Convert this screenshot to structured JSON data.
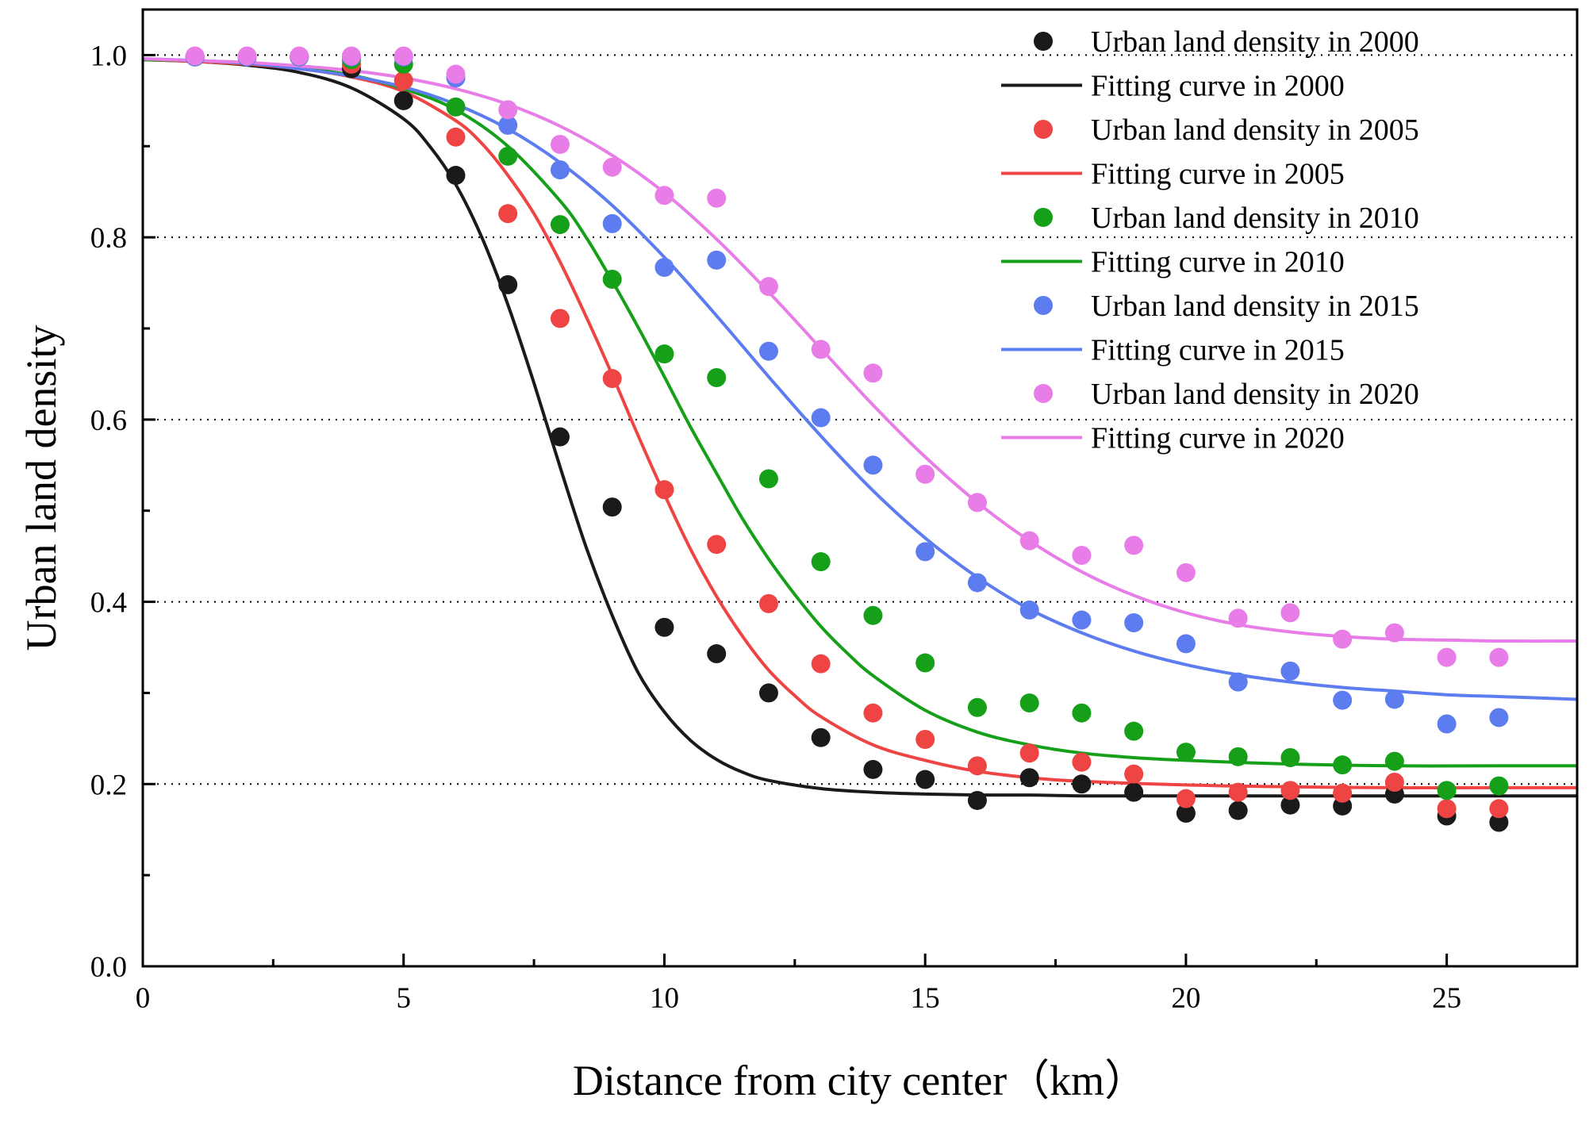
{
  "chart_data": {
    "type": "scatter",
    "xlabel": "Distance from city center（km）",
    "ylabel": "Urban land density",
    "xlim": [
      0,
      27.5
    ],
    "ylim": [
      0,
      1.05
    ],
    "x_ticks": [
      0,
      5,
      10,
      15,
      20,
      25
    ],
    "x_tick_labels": [
      "0",
      "5",
      "10",
      "15",
      "20",
      "25"
    ],
    "y_ticks": [
      0.0,
      0.2,
      0.4,
      0.6,
      0.8,
      1.0
    ],
    "y_tick_labels": [
      "0.0",
      "0.2",
      "0.4",
      "0.6",
      "0.8",
      "1.0"
    ],
    "grid": "dotted horizontal lines at 0.2, 0.4, 0.6, 0.8, 1.0",
    "legend_position": "top-right",
    "series": [
      {
        "name": "Urban land density in 2000",
        "kind": "points",
        "color": "#1a1a1a",
        "x": [
          1,
          2,
          3,
          4,
          5,
          6,
          7,
          8,
          9,
          10,
          11,
          12,
          13,
          14,
          15,
          16,
          17,
          18,
          19,
          20,
          21,
          22,
          23,
          24,
          25,
          26
        ],
        "y": [
          0.998,
          0.998,
          0.998,
          0.985,
          0.95,
          0.868,
          0.748,
          0.581,
          0.504,
          0.372,
          0.343,
          0.3,
          0.251,
          0.216,
          0.205,
          0.182,
          0.207,
          0.2,
          0.191,
          0.168,
          0.171,
          0.177,
          0.176,
          0.189,
          0.165,
          0.158
        ]
      },
      {
        "name": "Fitting curve in 2000",
        "kind": "curve",
        "color": "#1a1a1a",
        "x": [
          0,
          1,
          2,
          3,
          4,
          5,
          5.5,
          6,
          6.5,
          7,
          7.5,
          8,
          8.5,
          9,
          9.5,
          10,
          10.5,
          11,
          11.5,
          12,
          13,
          14,
          15,
          16,
          17,
          18,
          20,
          22,
          24,
          26,
          27.5
        ],
        "y": [
          0.995,
          0.993,
          0.989,
          0.981,
          0.964,
          0.93,
          0.9,
          0.858,
          0.8,
          0.726,
          0.64,
          0.548,
          0.46,
          0.385,
          0.322,
          0.279,
          0.248,
          0.227,
          0.213,
          0.204,
          0.195,
          0.191,
          0.189,
          0.188,
          0.188,
          0.187,
          0.187,
          0.187,
          0.187,
          0.187,
          0.187
        ]
      },
      {
        "name": "Urban land density in 2005",
        "kind": "points",
        "color": "#ef4444",
        "x": [
          1,
          2,
          3,
          4,
          5,
          6,
          7,
          8,
          9,
          10,
          11,
          12,
          13,
          14,
          15,
          16,
          17,
          18,
          19,
          20,
          21,
          22,
          23,
          24,
          25,
          26
        ],
        "y": [
          0.998,
          0.998,
          0.998,
          0.99,
          0.972,
          0.91,
          0.826,
          0.711,
          0.645,
          0.523,
          0.463,
          0.398,
          0.332,
          0.278,
          0.249,
          0.22,
          0.234,
          0.224,
          0.211,
          0.184,
          0.191,
          0.193,
          0.19,
          0.202,
          0.173,
          0.173
        ]
      },
      {
        "name": "Fitting curve in 2005",
        "kind": "curve",
        "color": "#ef4444",
        "x": [
          0,
          1,
          2,
          3,
          4,
          5,
          6,
          6.5,
          7,
          7.5,
          8,
          8.5,
          9,
          9.5,
          10,
          10.5,
          11,
          11.5,
          12,
          12.5,
          13,
          14,
          15,
          16,
          17,
          18,
          20,
          22,
          24,
          26,
          27.5
        ],
        "y": [
          0.995,
          0.993,
          0.99,
          0.985,
          0.976,
          0.96,
          0.928,
          0.903,
          0.868,
          0.826,
          0.773,
          0.713,
          0.649,
          0.582,
          0.518,
          0.458,
          0.406,
          0.362,
          0.325,
          0.297,
          0.274,
          0.243,
          0.226,
          0.214,
          0.207,
          0.203,
          0.199,
          0.197,
          0.196,
          0.196,
          0.196
        ]
      },
      {
        "name": "Urban land density in 2010",
        "kind": "points",
        "color": "#16a01a",
        "x": [
          1,
          2,
          3,
          4,
          5,
          6,
          7,
          8,
          9,
          10,
          11,
          12,
          13,
          14,
          15,
          16,
          17,
          18,
          19,
          20,
          21,
          22,
          23,
          24,
          25,
          26
        ],
        "y": [
          0.998,
          0.998,
          0.998,
          0.995,
          0.99,
          0.943,
          0.889,
          0.814,
          0.754,
          0.672,
          0.646,
          0.535,
          0.444,
          0.385,
          0.333,
          0.284,
          0.289,
          0.278,
          0.258,
          0.235,
          0.23,
          0.229,
          0.221,
          0.225,
          0.193,
          0.198
        ]
      },
      {
        "name": "Fitting curve in 2010",
        "kind": "curve",
        "color": "#16a01a",
        "x": [
          0,
          1,
          2,
          3,
          4,
          5,
          6,
          7,
          8,
          8.5,
          9,
          9.5,
          10,
          10.5,
          11,
          11.5,
          12,
          12.5,
          13,
          13.5,
          14,
          15,
          16,
          17,
          18,
          19,
          20,
          22,
          24,
          26,
          27.5
        ],
        "y": [
          0.995,
          0.994,
          0.991,
          0.986,
          0.978,
          0.963,
          0.94,
          0.9,
          0.84,
          0.8,
          0.752,
          0.701,
          0.647,
          0.592,
          0.541,
          0.491,
          0.447,
          0.408,
          0.373,
          0.344,
          0.319,
          0.281,
          0.257,
          0.243,
          0.234,
          0.229,
          0.226,
          0.222,
          0.22,
          0.22,
          0.22
        ]
      },
      {
        "name": "Urban land density in 2015",
        "kind": "points",
        "color": "#5c7cf0",
        "x": [
          1,
          2,
          3,
          4,
          5,
          6,
          7,
          8,
          9,
          10,
          11,
          12,
          13,
          14,
          15,
          16,
          17,
          18,
          19,
          20,
          21,
          22,
          23,
          24,
          25,
          26
        ],
        "y": [
          0.998,
          0.998,
          0.998,
          0.998,
          0.998,
          0.975,
          0.923,
          0.874,
          0.815,
          0.767,
          0.775,
          0.675,
          0.602,
          0.55,
          0.455,
          0.421,
          0.391,
          0.38,
          0.377,
          0.354,
          0.312,
          0.324,
          0.292,
          0.293,
          0.266,
          0.273
        ]
      },
      {
        "name": "Fitting curve in 2015",
        "kind": "curve",
        "color": "#5c7cf0",
        "x": [
          0,
          1,
          2,
          3,
          4,
          5,
          6,
          7,
          8,
          9,
          10,
          11,
          12,
          13,
          14,
          15,
          16,
          17,
          18,
          19,
          20,
          21,
          22,
          23,
          24,
          25,
          26,
          27.5
        ],
        "y": [
          0.996,
          0.994,
          0.991,
          0.985,
          0.977,
          0.965,
          0.946,
          0.919,
          0.882,
          0.835,
          0.778,
          0.714,
          0.647,
          0.582,
          0.522,
          0.47,
          0.427,
          0.392,
          0.366,
          0.346,
          0.331,
          0.32,
          0.312,
          0.306,
          0.302,
          0.298,
          0.296,
          0.293
        ]
      },
      {
        "name": "Urban land density in 2020",
        "kind": "points",
        "color": "#e87de8",
        "x": [
          1,
          2,
          3,
          4,
          5,
          6,
          7,
          8,
          9,
          10,
          11,
          12,
          13,
          14,
          15,
          16,
          17,
          18,
          19,
          20,
          21,
          22,
          23,
          24,
          25,
          26
        ],
        "y": [
          0.999,
          0.999,
          0.999,
          0.999,
          0.999,
          0.979,
          0.94,
          0.902,
          0.877,
          0.846,
          0.843,
          0.746,
          0.677,
          0.651,
          0.54,
          0.509,
          0.467,
          0.451,
          0.462,
          0.432,
          0.382,
          0.388,
          0.359,
          0.366,
          0.339,
          0.339
        ]
      },
      {
        "name": "Fitting curve in 2020",
        "kind": "curve",
        "color": "#e87de8",
        "x": [
          0,
          1,
          2,
          3,
          4,
          5,
          6,
          7,
          8,
          9,
          10,
          11,
          12,
          13,
          14,
          15,
          16,
          17,
          18,
          19,
          20,
          21,
          22,
          23,
          24,
          25,
          26,
          27.5
        ],
        "y": [
          0.996,
          0.994,
          0.992,
          0.988,
          0.983,
          0.975,
          0.963,
          0.946,
          0.922,
          0.89,
          0.849,
          0.798,
          0.74,
          0.678,
          0.616,
          0.559,
          0.509,
          0.467,
          0.433,
          0.407,
          0.388,
          0.375,
          0.367,
          0.362,
          0.359,
          0.358,
          0.357,
          0.357
        ]
      }
    ]
  }
}
